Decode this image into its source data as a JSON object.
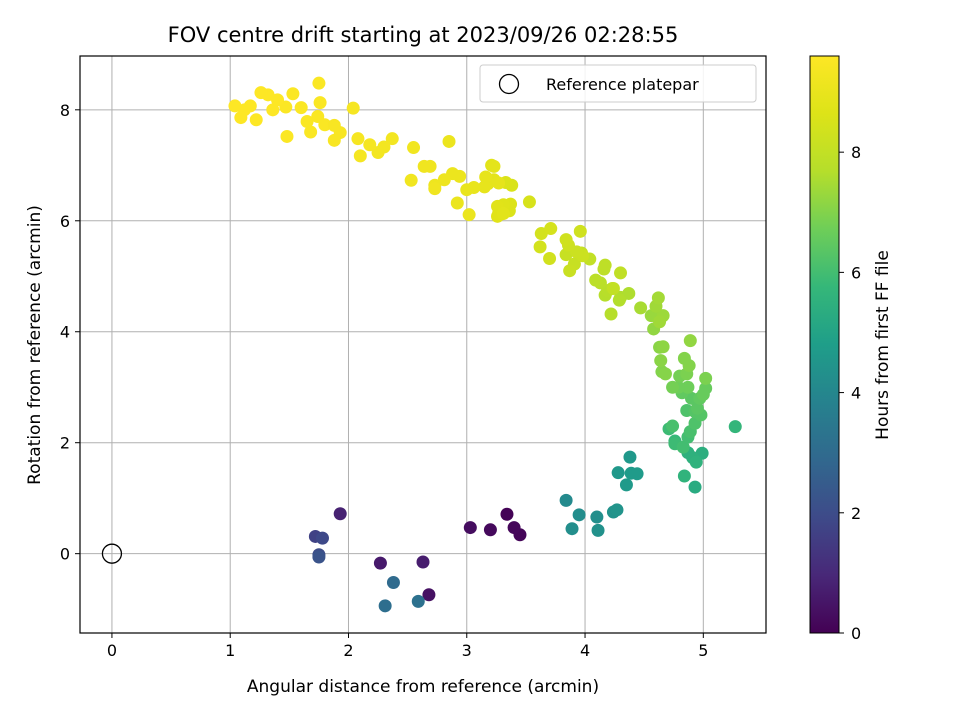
{
  "chart_data": {
    "type": "scatter",
    "title": "FOV centre drift starting at 2023/09/26 02:28:55",
    "xlabel": "Angular distance from reference (arcmin)",
    "ylabel": "Rotation from reference (arcmin)",
    "xlim": [
      -0.27,
      5.53
    ],
    "ylim": [
      -1.43,
      8.97
    ],
    "xticks": [
      "0",
      "1",
      "2",
      "3",
      "4",
      "5"
    ],
    "yticks": [
      "0",
      "2",
      "4",
      "6",
      "8"
    ],
    "grid": true,
    "legend": {
      "location": "top-right",
      "entries": [
        "Reference platepar"
      ]
    },
    "reference_point": {
      "x": 0,
      "y": 0,
      "marker": "open-circle"
    },
    "colorbar": {
      "label": "Hours from first FF file",
      "colormap": "viridis",
      "range": [
        0,
        9.6
      ],
      "ticks": [
        "0",
        "2",
        "4",
        "6",
        "8"
      ]
    },
    "points": [
      [
        3.34,
        0.71,
        0.05
      ],
      [
        3.45,
        0.34,
        0.1
      ],
      [
        3.4,
        0.47,
        0.15
      ],
      [
        3.2,
        0.43,
        0.2
      ],
      [
        3.03,
        0.47,
        0.3
      ],
      [
        2.68,
        -0.74,
        0.4
      ],
      [
        2.27,
        -0.17,
        0.6
      ],
      [
        2.63,
        -0.15,
        0.7
      ],
      [
        1.93,
        0.72,
        0.8
      ],
      [
        1.72,
        0.31,
        1.7
      ],
      [
        1.78,
        0.28,
        1.9
      ],
      [
        1.75,
        -0.02,
        2.0
      ],
      [
        1.75,
        -0.06,
        2.2
      ],
      [
        2.38,
        -0.52,
        3.0
      ],
      [
        2.31,
        -0.94,
        3.1
      ],
      [
        2.59,
        -0.86,
        3.2
      ],
      [
        3.84,
        0.96,
        4.1
      ],
      [
        3.95,
        0.7,
        4.2
      ],
      [
        3.89,
        0.45,
        4.25
      ],
      [
        4.1,
        0.66,
        4.3
      ],
      [
        4.11,
        0.42,
        4.35
      ],
      [
        4.24,
        0.75,
        4.4
      ],
      [
        4.27,
        0.79,
        4.45
      ],
      [
        4.38,
        1.74,
        4.6
      ],
      [
        4.28,
        1.46,
        4.6
      ],
      [
        4.35,
        1.24,
        4.65
      ],
      [
        4.39,
        1.45,
        4.7
      ],
      [
        4.44,
        1.44,
        4.7
      ],
      [
        4.93,
        1.2,
        5.3
      ],
      [
        4.99,
        1.81,
        5.4
      ],
      [
        4.87,
        1.82,
        5.5
      ],
      [
        4.91,
        1.73,
        5.5
      ],
      [
        4.94,
        1.65,
        5.55
      ],
      [
        4.84,
        1.4,
        5.6
      ],
      [
        5.27,
        2.29,
        5.7
      ],
      [
        4.76,
        2.03,
        5.8
      ],
      [
        4.71,
        2.25,
        5.9
      ],
      [
        4.76,
        1.98,
        5.9
      ],
      [
        4.83,
        1.92,
        6.0
      ],
      [
        4.87,
        2.1,
        6.0
      ],
      [
        4.74,
        2.3,
        6.1
      ],
      [
        4.89,
        2.2,
        6.1
      ],
      [
        4.93,
        2.35,
        6.2
      ],
      [
        4.86,
        2.58,
        6.2
      ],
      [
        4.93,
        2.56,
        6.3
      ],
      [
        4.98,
        2.5,
        6.3
      ],
      [
        4.95,
        2.62,
        6.4
      ],
      [
        4.9,
        2.8,
        6.4
      ],
      [
        4.82,
        2.9,
        6.5
      ],
      [
        4.97,
        2.8,
        6.5
      ],
      [
        5.02,
        2.98,
        6.6
      ],
      [
        5.0,
        2.87,
        6.6
      ],
      [
        4.87,
        3.0,
        6.7
      ],
      [
        4.79,
        3.0,
        6.7
      ],
      [
        4.74,
        3.0,
        6.8
      ],
      [
        4.8,
        3.2,
        6.8
      ],
      [
        4.86,
        3.24,
        6.9
      ],
      [
        5.02,
        3.16,
        6.9
      ],
      [
        4.88,
        3.39,
        7.0
      ],
      [
        4.84,
        3.52,
        7.0
      ],
      [
        4.65,
        3.28,
        7.0
      ],
      [
        4.68,
        3.24,
        7.05
      ],
      [
        4.64,
        3.48,
        7.1
      ],
      [
        4.63,
        3.72,
        7.1
      ],
      [
        4.66,
        3.73,
        7.15
      ],
      [
        4.89,
        3.84,
        7.2
      ],
      [
        4.58,
        4.05,
        7.2
      ],
      [
        4.56,
        4.29,
        7.3
      ],
      [
        4.61,
        4.32,
        7.3
      ],
      [
        4.66,
        4.29,
        7.35
      ],
      [
        4.63,
        4.18,
        7.4
      ],
      [
        4.6,
        4.46,
        7.4
      ],
      [
        4.62,
        4.61,
        7.45
      ],
      [
        4.47,
        4.43,
        7.5
      ],
      [
        4.3,
        4.62,
        7.6
      ],
      [
        4.37,
        4.69,
        7.6
      ],
      [
        4.29,
        4.57,
        7.65
      ],
      [
        4.22,
        4.32,
        7.7
      ],
      [
        4.17,
        4.66,
        7.7
      ],
      [
        4.19,
        4.74,
        7.75
      ],
      [
        4.23,
        4.78,
        7.8
      ],
      [
        4.13,
        4.88,
        7.8
      ],
      [
        4.09,
        4.93,
        7.85
      ],
      [
        4.16,
        5.13,
        7.9
      ],
      [
        4.17,
        5.2,
        7.9
      ],
      [
        4.3,
        5.06,
        7.95
      ],
      [
        4.24,
        4.78,
        8.0
      ],
      [
        4.04,
        5.31,
        8.0
      ],
      [
        3.97,
        5.42,
        8.05
      ],
      [
        3.91,
        5.22,
        8.1
      ],
      [
        3.84,
        5.39,
        8.1
      ],
      [
        3.87,
        5.1,
        8.15
      ],
      [
        3.98,
        5.37,
        8.2
      ],
      [
        3.93,
        5.44,
        8.2
      ],
      [
        3.86,
        5.56,
        8.25
      ],
      [
        3.84,
        5.66,
        8.3
      ],
      [
        3.96,
        5.81,
        8.3
      ],
      [
        3.7,
        5.32,
        8.35
      ],
      [
        3.62,
        5.53,
        8.4
      ],
      [
        3.63,
        5.77,
        8.4
      ],
      [
        3.71,
        5.86,
        8.45
      ],
      [
        3.53,
        6.34,
        8.5
      ],
      [
        3.38,
        6.64,
        8.55
      ],
      [
        3.33,
        6.69,
        8.6
      ],
      [
        3.36,
        6.18,
        8.6
      ],
      [
        3.37,
        6.3,
        8.65
      ],
      [
        3.31,
        6.29,
        8.7
      ],
      [
        3.27,
        6.14,
        8.7
      ],
      [
        3.26,
        6.26,
        8.75
      ],
      [
        3.26,
        6.08,
        8.75
      ],
      [
        3.31,
        6.13,
        8.8
      ],
      [
        3.21,
        7.0,
        8.8
      ],
      [
        3.23,
        6.98,
        8.85
      ],
      [
        3.23,
        6.74,
        8.85
      ],
      [
        3.27,
        6.68,
        8.9
      ],
      [
        3.18,
        6.67,
        8.9
      ],
      [
        3.15,
        6.61,
        8.95
      ],
      [
        3.16,
        6.79,
        8.95
      ],
      [
        3.06,
        6.6,
        9.0
      ],
      [
        3.0,
        6.56,
        9.0
      ],
      [
        3.02,
        6.11,
        9.05
      ],
      [
        2.92,
        6.32,
        9.05
      ],
      [
        2.94,
        6.8,
        9.1
      ],
      [
        2.85,
        7.43,
        9.1
      ],
      [
        2.88,
        6.85,
        9.1
      ],
      [
        2.81,
        6.74,
        9.15
      ],
      [
        2.73,
        6.64,
        9.15
      ],
      [
        2.64,
        6.98,
        9.2
      ],
      [
        2.69,
        6.98,
        9.2
      ],
      [
        2.73,
        6.58,
        9.2
      ],
      [
        2.53,
        6.73,
        9.25
      ],
      [
        2.55,
        7.32,
        9.25
      ],
      [
        2.37,
        7.48,
        9.3
      ],
      [
        2.3,
        7.33,
        9.3
      ],
      [
        2.25,
        7.23,
        9.3
      ],
      [
        2.18,
        7.37,
        9.35
      ],
      [
        2.1,
        7.17,
        9.35
      ],
      [
        2.08,
        7.48,
        9.4
      ],
      [
        2.04,
        8.03,
        9.4
      ],
      [
        1.93,
        7.59,
        9.45
      ],
      [
        1.88,
        7.45,
        9.45
      ],
      [
        1.8,
        7.73,
        9.5
      ],
      [
        1.74,
        7.88,
        9.5
      ],
      [
        1.68,
        7.6,
        9.5
      ],
      [
        1.65,
        7.79,
        9.5
      ],
      [
        1.6,
        8.04,
        9.55
      ],
      [
        1.53,
        8.29,
        9.55
      ],
      [
        1.48,
        7.52,
        9.55
      ],
      [
        1.47,
        8.05,
        9.55
      ],
      [
        1.36,
        8.0,
        9.6
      ],
      [
        1.4,
        8.18,
        9.6
      ],
      [
        1.32,
        8.27,
        9.6
      ],
      [
        1.26,
        8.31,
        9.6
      ],
      [
        1.22,
        7.82,
        9.6
      ],
      [
        1.17,
        8.07,
        9.6
      ],
      [
        1.12,
        8.0,
        9.6
      ],
      [
        1.09,
        7.86,
        9.6
      ],
      [
        1.04,
        8.07,
        9.6
      ],
      [
        1.76,
        8.13,
        9.5
      ],
      [
        1.75,
        8.48,
        9.5
      ],
      [
        1.88,
        7.72,
        9.45
      ]
    ]
  }
}
